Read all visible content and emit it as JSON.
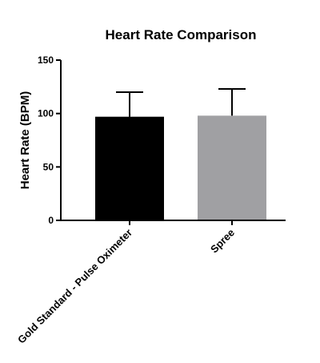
{
  "chart_data": {
    "type": "bar",
    "title": "Heart Rate Comparison",
    "xlabel": "",
    "ylabel": "Heart Rate (BPM)",
    "ylim": [
      0,
      150
    ],
    "yticks": [
      0,
      50,
      100,
      150
    ],
    "categories": [
      "Gold Standard - Pulse Oximeter",
      "Spree"
    ],
    "values": [
      97,
      98
    ],
    "error_upper": [
      120,
      123
    ],
    "bar_colors": [
      "#000000",
      "#a0a0a3"
    ],
    "grid": false,
    "legend": "none"
  }
}
